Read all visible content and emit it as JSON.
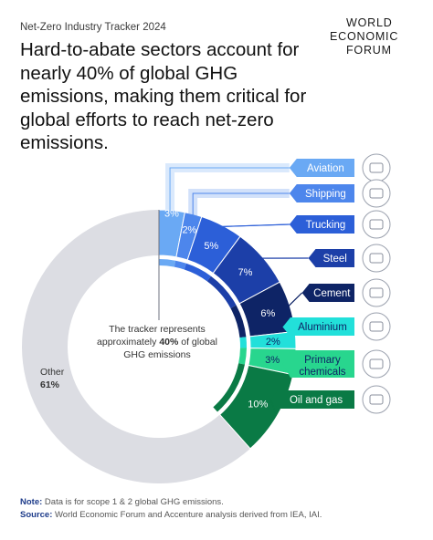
{
  "header": {
    "kicker": "Net-Zero Industry Tracker 2024",
    "title": "Hard-to-abate sectors account for nearly 40% of global GHG emissions, making them critical for global efforts to reach net-zero emissions.",
    "logo_lines": [
      "WORLD",
      "ECONOMIC",
      "FORUM"
    ]
  },
  "chart_data": {
    "type": "pie",
    "title": "Hard-to-abate sectors account for nearly 40% of global GHG emissions, making them critical for global efforts to reach net-zero emissions.",
    "unit": "%",
    "center_text": [
      "The tracker represents",
      "approximately 40% of global",
      "GHG emissions"
    ],
    "series": [
      {
        "name": "Aviation",
        "value": 3,
        "label": "3%",
        "color": "#6aa9f4",
        "icon": "airplane-icon"
      },
      {
        "name": "Shipping",
        "value": 2,
        "label": "2%",
        "color": "#4d86ec",
        "icon": "ship-icon"
      },
      {
        "name": "Trucking",
        "value": 5,
        "label": "5%",
        "color": "#2c5fd8",
        "icon": "truck-icon"
      },
      {
        "name": "Steel",
        "value": 7,
        "label": "7%",
        "color": "#1c3fa8",
        "icon": "steel-beam-icon"
      },
      {
        "name": "Cement",
        "value": 6,
        "label": "6%",
        "color": "#0e2466",
        "icon": "cement-mixer-icon"
      },
      {
        "name": "Aluminium",
        "value": 2,
        "label": "2%",
        "color": "#22e0da",
        "icon": "aluminium-can-icon"
      },
      {
        "name": "Primary chemicals",
        "value": 3,
        "label": "3%",
        "color": "#28d68e",
        "icon": "chemical-plant-icon"
      },
      {
        "name": "Oil and gas",
        "value": 10,
        "label": "10%",
        "color": "#0a7a45",
        "icon": "oil-barrel-icon"
      }
    ],
    "other": {
      "name": "Other",
      "value": 61,
      "label": "61%",
      "color": "#dcdde3"
    }
  },
  "footer": {
    "note_label": "Note:",
    "note_text": " Data is for scope 1 & 2 global GHG emissions.",
    "source_label": "Source:",
    "source_text": " World Economic Forum and Accenture analysis derived from IEA, IAI."
  }
}
